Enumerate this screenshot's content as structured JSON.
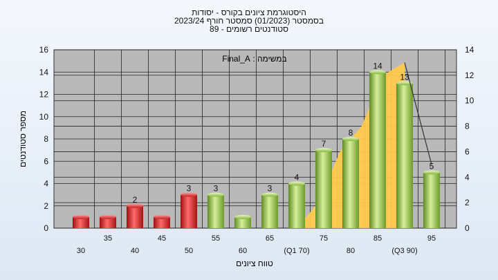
{
  "chart_data": {
    "type": "bar",
    "title": "היסטוגרמת ציונים בקורס - יסודות",
    "subtitle": [
      "בסמסטר  (01/2023)  סמסטר חורף  2023/24",
      "סטודנטים רשומים - 89"
    ],
    "annotation": "במשימה : Final_A",
    "xlabel": "טווח ציונים",
    "ylabel": "מספר סטודנטים",
    "categories": [
      "30",
      "35",
      "40",
      "45",
      "50",
      "55",
      "60",
      "65",
      "(Q1 70)",
      "75",
      "80",
      "85",
      "(Q3 90)",
      "95"
    ],
    "values": [
      1,
      1,
      2,
      1,
      3,
      3,
      1,
      3,
      4,
      7,
      8,
      14,
      13,
      5
    ],
    "data_labels": [
      "",
      "",
      "2",
      "",
      "3",
      "3",
      "",
      "3",
      "4",
      "7",
      "8",
      "14",
      "13",
      "5"
    ],
    "bar_colors": [
      "red",
      "red",
      "red",
      "red",
      "red",
      "green",
      "green",
      "green",
      "green",
      "green",
      "green",
      "green",
      "green",
      "green"
    ],
    "ylim": [
      0,
      16
    ],
    "yticks": [
      0,
      2,
      4,
      6,
      8,
      10,
      12,
      14,
      16
    ],
    "y2lim": [
      0,
      14
    ],
    "y2ticks": [
      0,
      2,
      4,
      6,
      8,
      10,
      12,
      14
    ],
    "area_series": {
      "x_start": "(Q1 70)",
      "x_end": "(Q3 90)",
      "values": [
        0,
        2,
        6,
        8,
        12,
        13
      ]
    },
    "line_series": [
      13,
      5
    ],
    "grid": true,
    "colors": {
      "plot_bg": "#b9b9b9",
      "area": "#ffc94d",
      "red_bar": "#d62a2a",
      "green_bar": "#8cbf43"
    }
  }
}
